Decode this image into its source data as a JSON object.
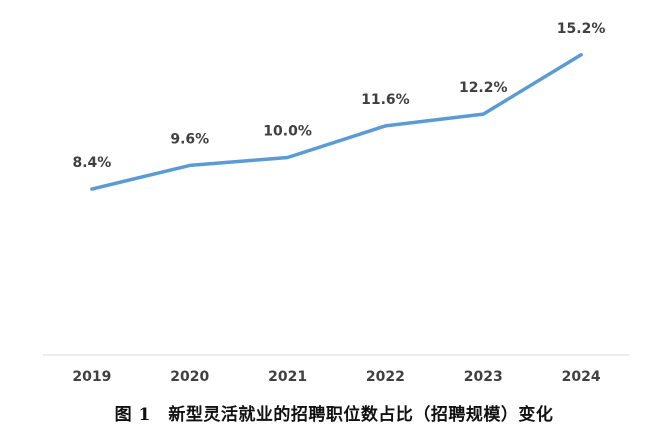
{
  "caption": "图 1　新型灵活就业的招聘职位数占比（招聘规模）变化",
  "chart_data": {
    "type": "line",
    "categories": [
      "2019",
      "2020",
      "2021",
      "2022",
      "2023",
      "2024"
    ],
    "values": [
      8.4,
      9.6,
      10.0,
      11.6,
      12.2,
      15.2
    ],
    "data_labels": [
      "8.4%",
      "9.6%",
      "10.0%",
      "11.6%",
      "12.2%",
      "15.2%"
    ],
    "unit": "%",
    "ylim": [
      0,
      20
    ],
    "grid": false,
    "legend": "none",
    "line_color": "#5b9bd5",
    "axis_color": "#d9d9d9",
    "label_color": "#404040"
  }
}
